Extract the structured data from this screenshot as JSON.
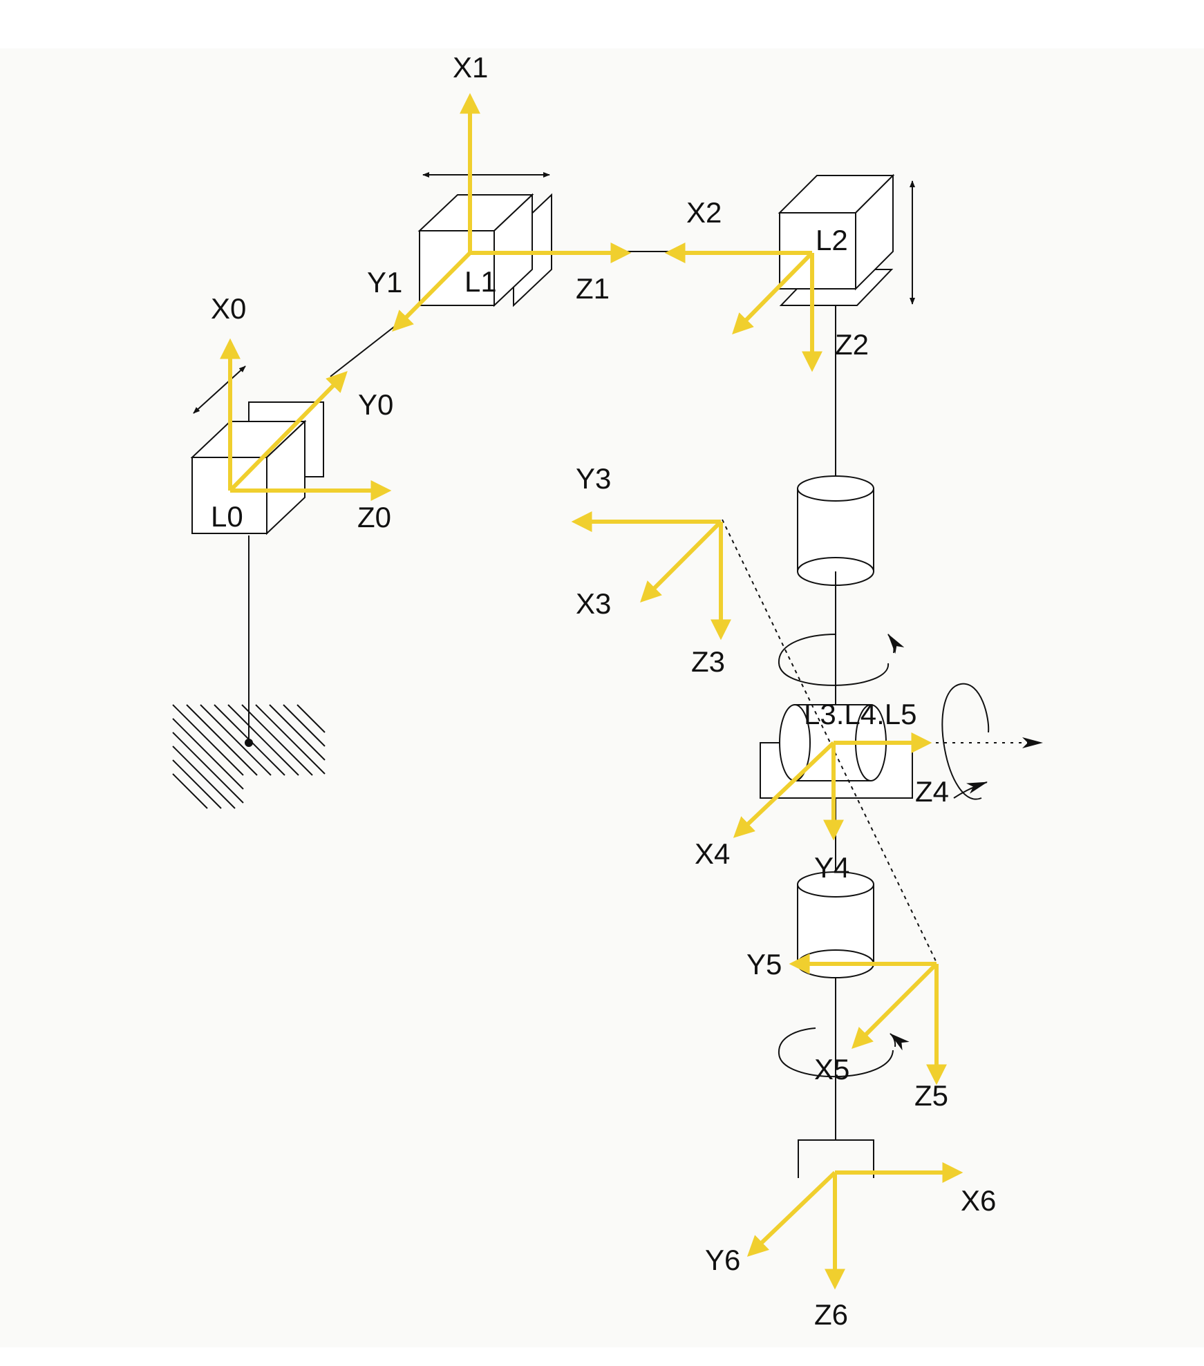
{
  "colors": {
    "axis": "#F0CF2E",
    "line": "#111111",
    "background": "#FAFAF8"
  },
  "links": {
    "l0": "L0",
    "l1": "L1",
    "l2": "L2",
    "l345": "L3.L4.L5"
  },
  "axes": {
    "x0": "X0",
    "y0": "Y0",
    "z0": "Z0",
    "x1": "X1",
    "y1": "Y1",
    "z1": "Z1",
    "x2": "X2",
    "z2": "Z2",
    "x3": "X3",
    "y3": "Y3",
    "z3": "Z3",
    "x4": "X4",
    "y4": "Y4",
    "z4": "Z4",
    "x5": "X5",
    "y5": "Y5",
    "z5": "Z5",
    "x6": "X6",
    "y6": "Y6",
    "z6": "Z6"
  }
}
